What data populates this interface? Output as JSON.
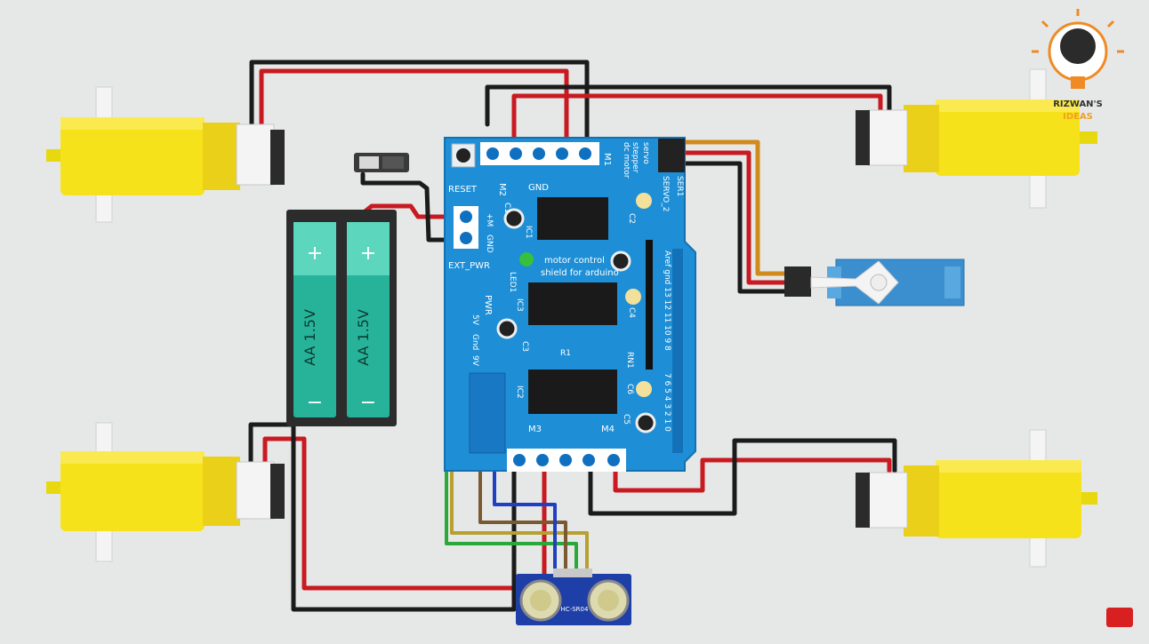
{
  "logo": {
    "line1": "RIZWAN'S",
    "line2": "IDEAS"
  },
  "shield": {
    "title_line1": "motor control",
    "title_line2": "shield for arduino",
    "labels": {
      "reset": "RESET",
      "gnd": "GND",
      "m2": "M2",
      "m1": "M1",
      "m3": "M3",
      "m4": "M4",
      "ext_pwr": "EXT_PWR",
      "pwr": "PWR",
      "plus_m": "+M",
      "gnd_term": "GND",
      "ic1": "IC1",
      "ic2": "IC2",
      "ic3": "IC3",
      "c1": "C1",
      "c2": "C2",
      "c3": "C3",
      "c4": "C4",
      "c5": "C5",
      "c6": "C6",
      "r1": "R1",
      "rn1": "RN1",
      "led1": "LED1",
      "servo_1": "SER1",
      "servo_2": "SERVO_2",
      "stepper": "stepper",
      "dc_motor": "dc motor",
      "servo": "servo",
      "aref": "Aref gnd 13 12 11 10 9 8",
      "digital": "7 6 5 4 3 2 1 0",
      "v5": "5V",
      "gnd2": "Gnd",
      "v9": "9V"
    }
  },
  "batteries": [
    {
      "label": "AA 1.5V",
      "plus": "+",
      "minus": "−"
    },
    {
      "label": "AA 1.5V",
      "plus": "+",
      "minus": "−"
    }
  ],
  "sensor": {
    "label": "HC-SR04"
  },
  "colors": {
    "background": "#e6e8e8",
    "board": "#1e8fd6",
    "motor": "#f6e21a",
    "battery": "#26b39a",
    "wire_red": "#c81a20",
    "wire_black": "#1b1b1b",
    "wire_orange": "#d18a1c",
    "wire_green": "#2aa83a",
    "wire_blue": "#2040c0",
    "wire_yellow": "#b8a030"
  },
  "icons": [
    "brain-bulb-icon",
    "subscribe-badge-icon"
  ]
}
